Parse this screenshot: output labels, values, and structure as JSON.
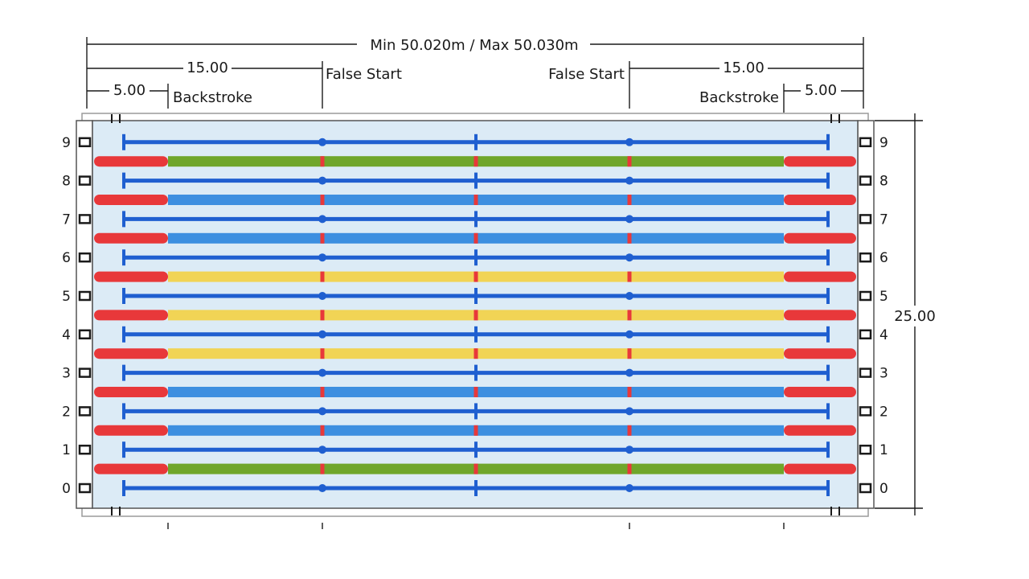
{
  "dimensions": {
    "overall_length": "Min 50.020m / Max 50.030m",
    "flag_distance_left": "15.00",
    "flag_distance_right": "15.00",
    "backstroke_distance_left": "5.00",
    "backstroke_distance_right": "5.00",
    "pool_width": "25.00"
  },
  "labels": {
    "false_start_left": "False Start",
    "false_start_right": "False Start",
    "backstroke_left": "Backstroke",
    "backstroke_right": "Backstroke"
  },
  "lanes": [
    "0",
    "1",
    "2",
    "3",
    "4",
    "5",
    "6",
    "7",
    "8",
    "9"
  ],
  "lane_ropes": [
    {
      "middle": "green"
    },
    {
      "middle": "blue"
    },
    {
      "middle": "blue"
    },
    {
      "middle": "yellow"
    },
    {
      "middle": "yellow"
    },
    {
      "middle": "yellow"
    },
    {
      "middle": "blue"
    },
    {
      "middle": "blue"
    },
    {
      "middle": "green"
    }
  ],
  "colors": {
    "water": "#dcebf6",
    "rope_end": "#e8383a",
    "green": "#6fa62b",
    "blue": "#3d8fe0",
    "yellow": "#f1d455",
    "lane_line": "#1f5fd0",
    "ink": "#1a1a1a"
  }
}
